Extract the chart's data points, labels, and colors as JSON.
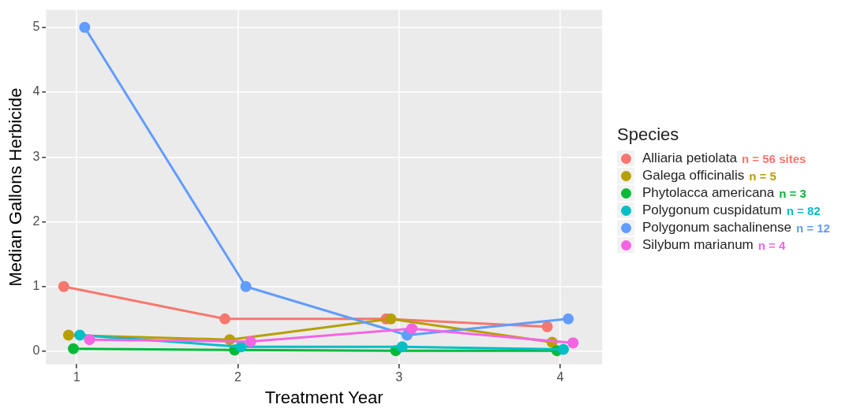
{
  "chart_data": {
    "type": "line",
    "xlabel": "Treatment Year",
    "ylabel": "Median Gallons Herbicide",
    "legend_title": "Species",
    "xlim": [
      0.81,
      4.26
    ],
    "xticks": [
      1,
      2,
      3,
      4
    ],
    "ylim": [
      -0.2,
      5.27
    ],
    "yticks": [
      0,
      1,
      2,
      3,
      4,
      5
    ],
    "grid": true,
    "legend": "right",
    "marker": "circle",
    "line_style": "solid",
    "series": [
      {
        "name": "Alliaria petiolata",
        "color": "#f8766d",
        "x": [
          0.92,
          1.92,
          2.92,
          3.92
        ],
        "values": [
          1.0,
          0.5,
          0.5,
          0.38
        ]
      },
      {
        "name": "Galega officinalis",
        "color": "#b79f00",
        "x": [
          0.95,
          1.95,
          2.95,
          3.95
        ],
        "values": [
          0.25,
          0.18,
          0.5,
          0.14
        ]
      },
      {
        "name": "Phytolacca americana",
        "color": "#00ba38",
        "x": [
          0.98,
          1.98,
          2.98,
          3.98
        ],
        "values": [
          0.04,
          0.02,
          0.01,
          0.01
        ]
      },
      {
        "name": "Polygonum cuspidatum",
        "color": "#00bfc4",
        "x": [
          1.02,
          2.02,
          3.02,
          4.02
        ],
        "values": [
          0.25,
          0.07,
          0.07,
          0.03
        ]
      },
      {
        "name": "Polygonum sachalinense",
        "color": "#619cff",
        "x": [
          1.05,
          2.05,
          3.05,
          4.05
        ],
        "values": [
          5.0,
          1.0,
          0.25,
          0.5
        ]
      },
      {
        "name": "Silybum marianum",
        "color": "#f564e3",
        "x": [
          1.08,
          2.08,
          3.08,
          4.08
        ],
        "values": [
          0.18,
          0.15,
          0.35,
          0.13
        ]
      }
    ],
    "annotations": [
      "n = 56 sites",
      "n = 5",
      "n = 3",
      "n = 82",
      "n = 12",
      "n = 4"
    ]
  }
}
